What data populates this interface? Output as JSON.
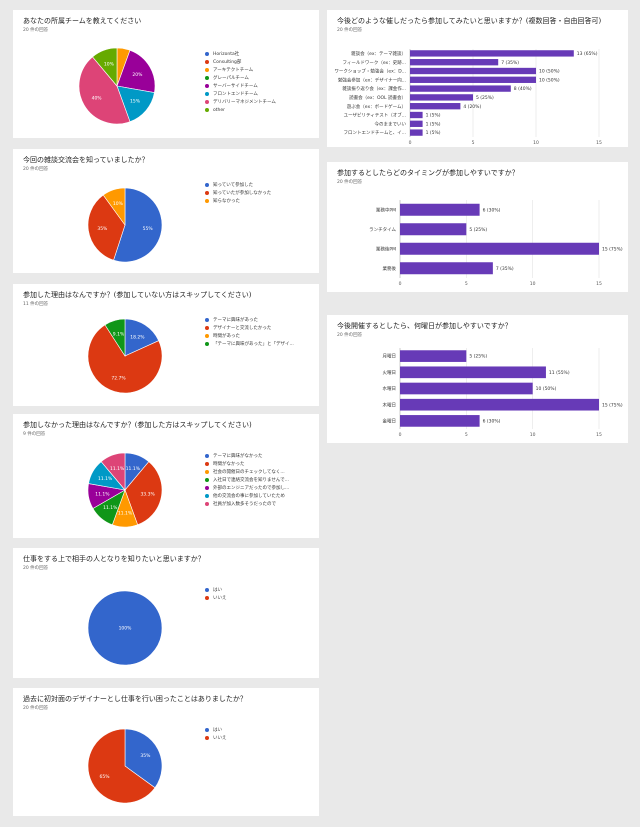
{
  "charts": [
    {
      "id": "team",
      "title": "あなたの所属チームを教えてください",
      "responses": "20 件の回答",
      "chart_data": {
        "type": "pie",
        "labels": [
          "Horizonta社",
          "Consulting部",
          "アーキテクトチーム",
          "グレーパルチーム",
          "サーバーサイドチーム",
          "フロントエンドチーム",
          "デリバリーマネジメントチーム",
          "other"
        ],
        "values": [
          0,
          0,
          5,
          0,
          20,
          15,
          40,
          10
        ],
        "slice_labels": [
          "",
          "",
          "",
          "",
          "20%",
          "15%",
          "40%",
          "10%"
        ],
        "colors": [
          "#3366cc",
          "#dc3912",
          "#ff9900",
          "#109618",
          "#990099",
          "#0099c6",
          "#dd4477",
          "#66aa00"
        ]
      }
    },
    {
      "id": "know",
      "title": "今回の雑談交流会を知っていましたか？",
      "responses": "20 件の回答",
      "chart_data": {
        "type": "pie",
        "labels": [
          "知っていて参加した",
          "知っていたが参加しなかった",
          "知らなかった"
        ],
        "values": [
          55,
          35,
          10
        ],
        "slice_labels": [
          "55%",
          "35%",
          "10%"
        ],
        "colors": [
          "#3366cc",
          "#dc3912",
          "#ff9900"
        ]
      }
    },
    {
      "id": "reason",
      "title": "参加した理由はなんですか？(参加していない方はスキップしてください)",
      "responses": "11 件の回答",
      "chart_data": {
        "type": "pie",
        "labels": [
          "テーマに興味があった",
          "デザイナーと交流したかった",
          "時間があった",
          "「テーマに興味があった」と「デザイ..."
        ],
        "values": [
          18.2,
          72.7,
          0,
          9.1
        ],
        "slice_labels": [
          "18.2%",
          "72.7%",
          "",
          "9.1%"
        ],
        "colors": [
          "#3366cc",
          "#dc3912",
          "#ff9900",
          "#109618"
        ]
      }
    },
    {
      "id": "noreason",
      "title": "参加しなかった理由はなんですか？(参加した方はスキップしてください)",
      "responses": "9 件の回答",
      "chart_data": {
        "type": "pie",
        "labels": [
          "テーマに興味がなかった",
          "時間がなかった",
          "社会の開催日のチェックしてなく...",
          "入社日で連絡交流会を知りませんで...",
          "外部のエンジニアだったので参加し...",
          "他の交流会の事に参加していたため",
          "社員が加入数多そうだったので"
        ],
        "values": [
          11.1,
          33.3,
          11.1,
          11.1,
          11.1,
          11.1,
          11.1
        ],
        "slice_labels": [
          "11.1%",
          "33.3%",
          "11.1%",
          "11.1%",
          "11.1%",
          "11.1%",
          "11.1%"
        ],
        "colors": [
          "#3366cc",
          "#dc3912",
          "#ff9900",
          "#109618",
          "#990099",
          "#0099c6",
          "#dd4477"
        ]
      }
    },
    {
      "id": "work",
      "title": "仕事をする上で相手の人となりを知りたいと思いますか？",
      "responses": "20 件の回答",
      "chart_data": {
        "type": "pie",
        "labels": [
          "はい",
          "いいえ"
        ],
        "values": [
          100,
          0
        ],
        "slice_labels": [
          "100%",
          ""
        ],
        "colors": [
          "#3366cc",
          "#dc3912"
        ]
      }
    },
    {
      "id": "designer",
      "title": "過去に初対面のデザイナーとし仕事を行い困ったことはありましたか？",
      "responses": "20 件の回答",
      "chart_data": {
        "type": "pie",
        "labels": [
          "はい",
          "いいえ"
        ],
        "values": [
          35,
          65
        ],
        "slice_labels": [
          "35%",
          "65%"
        ],
        "colors": [
          "#3366cc",
          "#dc3912"
        ]
      }
    },
    {
      "id": "events",
      "title": "今後どのような催しだったら参加してみたいと思いますか？(複数回答・自由回答可)",
      "responses": "20 件の回答",
      "chart_data": {
        "type": "bar",
        "orientation": "horizontal",
        "categories": [
          "雑談会（ex：テーマ雑談）",
          "フィールドワーク（ex：史跡...",
          "ワークショップ・勉強会（ex：D...",
          "勉強会参加（ex：デザイナー向...",
          "雑談振り返り会（ex：課金作...",
          "読書会（ex：OOL 読書会）",
          "遊ぶ会（ex：ボードゲーム）",
          "ユーザビリティテスト（オブ...",
          "今のままでいい",
          "フロントエンドチームと、イ..."
        ],
        "values": [
          13,
          7,
          10,
          10,
          8,
          5,
          4,
          1,
          1,
          1
        ],
        "value_labels": [
          "13 (65%)",
          "7 (35%)",
          "10 (50%)",
          "10 (50%)",
          "8 (40%)",
          "5 (25%)",
          "4 (20%)",
          "1 (5%)",
          "1 (5%)",
          "1 (5%)"
        ],
        "xticks": [
          0,
          5,
          10,
          15
        ],
        "xlim": [
          0,
          15
        ],
        "color": "#673ab7"
      }
    },
    {
      "id": "timing",
      "title": "参加するとしたらどのタイミングが参加しやすいですか？",
      "responses": "20 件の回答",
      "chart_data": {
        "type": "bar",
        "orientation": "horizontal",
        "categories": [
          "業務中PM",
          "ランチタイム",
          "業務後PM",
          "業務後"
        ],
        "values": [
          6,
          5,
          15,
          7
        ],
        "value_labels": [
          "6 (30%)",
          "5 (25%)",
          "15 (75%)",
          "7 (35%)"
        ],
        "xticks": [
          0,
          5,
          10,
          15
        ],
        "xlim": [
          0,
          15
        ],
        "color": "#673ab7"
      }
    },
    {
      "id": "day",
      "title": "今後開催するとしたら、何曜日が参加しやすいですか？",
      "responses": "20 件の回答",
      "chart_data": {
        "type": "bar",
        "orientation": "horizontal",
        "categories": [
          "月曜日",
          "火曜日",
          "水曜日",
          "木曜日",
          "金曜日"
        ],
        "values": [
          5,
          11,
          10,
          15,
          6
        ],
        "value_labels": [
          "5 (25%)",
          "11 (55%)",
          "10 (50%)",
          "15 (75%)",
          "6 (30%)"
        ],
        "xticks": [
          0,
          5,
          10,
          15
        ],
        "xlim": [
          0,
          15
        ],
        "color": "#673ab7"
      }
    }
  ]
}
